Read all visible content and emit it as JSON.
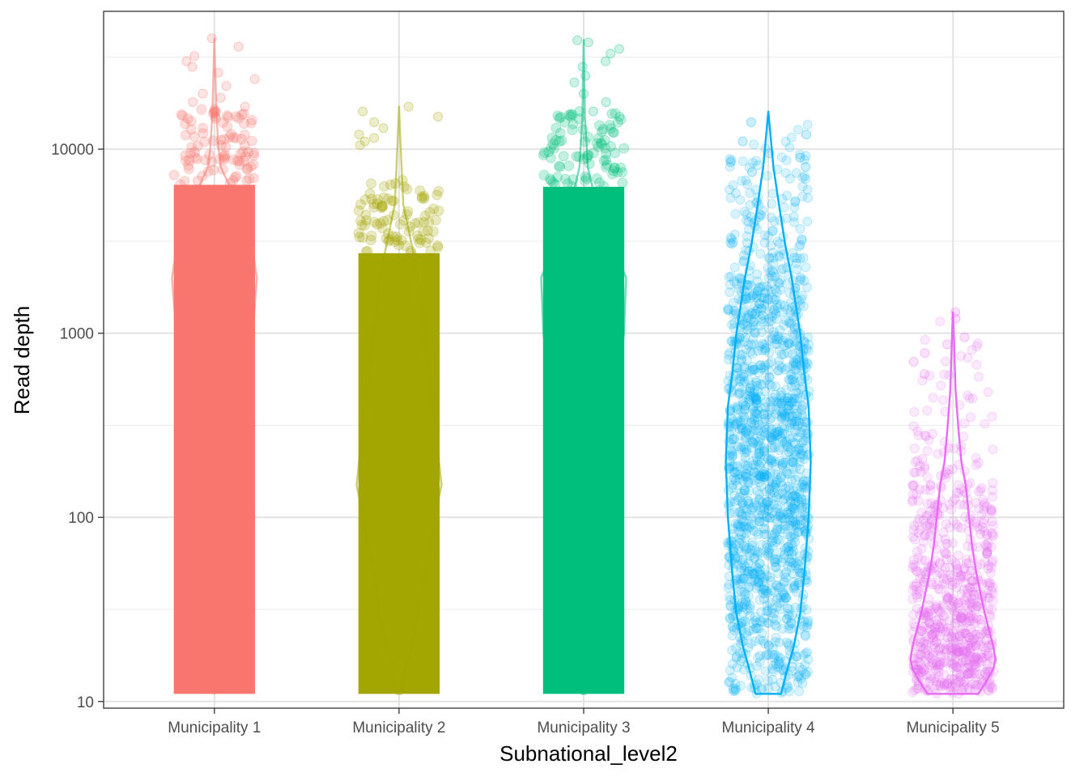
{
  "chart_data": {
    "type": "scatter",
    "subtype": "jittered-points-with-violin",
    "title": "",
    "xlabel": "Subnational_level2",
    "ylabel": "Read depth",
    "y_scale": "log10",
    "ylim": [
      9.2,
      56000
    ],
    "y_ticks": [
      10,
      100,
      1000,
      10000
    ],
    "y_tick_labels": [
      "10",
      "100",
      "1000",
      "10000"
    ],
    "grid": true,
    "legend": "none",
    "point_alpha": 0.15,
    "categories": [
      "Municipality 1",
      "Municipality 2",
      "Municipality 3",
      "Municipality 4",
      "Municipality 5"
    ],
    "groups": [
      {
        "name": "Municipality 1",
        "color": "#F8766D",
        "density": "very-high",
        "min": 11,
        "max": 40000,
        "outlier_points": [
          40000,
          36000,
          32000,
          30000,
          28000,
          26000,
          24000,
          22000,
          20000,
          19000,
          18000,
          17000,
          16000,
          15000
        ],
        "violin": [
          [
            11,
            0.0
          ],
          [
            14,
            0.0
          ],
          [
            20,
            0.0
          ],
          [
            40,
            0.1
          ],
          [
            100,
            0.2
          ],
          [
            300,
            0.5
          ],
          [
            1000,
            0.9
          ],
          [
            2000,
            1.0
          ],
          [
            4000,
            0.8
          ],
          [
            6000,
            0.4
          ],
          [
            8000,
            0.15
          ],
          [
            10000,
            0.1
          ],
          [
            15000,
            0.05
          ],
          [
            40000,
            0.0
          ]
        ]
      },
      {
        "name": "Municipality 2",
        "color": "#A3A500",
        "density": "very-high",
        "min": 11,
        "max": 17000,
        "outlier_points": [
          17000,
          16000,
          15000,
          14000,
          13000,
          12000,
          11500,
          11000,
          10500
        ],
        "violin": [
          [
            11,
            0.05
          ],
          [
            15,
            0.15
          ],
          [
            20,
            0.3
          ],
          [
            30,
            0.45
          ],
          [
            50,
            0.6
          ],
          [
            100,
            0.85
          ],
          [
            150,
            1.0
          ],
          [
            250,
            0.9
          ],
          [
            500,
            0.75
          ],
          [
            1000,
            0.6
          ],
          [
            2000,
            0.45
          ],
          [
            3000,
            0.3
          ],
          [
            5000,
            0.1
          ],
          [
            9000,
            0.05
          ],
          [
            17000,
            0.0
          ]
        ]
      },
      {
        "name": "Municipality 3",
        "color": "#00BF7D",
        "density": "very-high",
        "min": 11,
        "max": 39000,
        "outlier_points": [
          39000,
          38000,
          35000,
          33000,
          30000,
          28000,
          25000,
          23000,
          20000,
          18000,
          16000,
          15000
        ],
        "violin": [
          [
            11,
            0.05
          ],
          [
            30,
            0.15
          ],
          [
            100,
            0.4
          ],
          [
            300,
            0.7
          ],
          [
            1000,
            0.95
          ],
          [
            2000,
            1.0
          ],
          [
            3000,
            0.7
          ],
          [
            5000,
            0.3
          ],
          [
            8000,
            0.1
          ],
          [
            15000,
            0.03
          ],
          [
            39000,
            0.0
          ]
        ]
      },
      {
        "name": "Municipality 4",
        "color": "#00B0F6",
        "density": "medium",
        "min": 11,
        "max": 16000,
        "outlier_points": [
          14000,
          12000,
          11000,
          9500,
          9000,
          8500,
          8000,
          7500
        ],
        "violin": [
          [
            11,
            0.3
          ],
          [
            15,
            0.45
          ],
          [
            20,
            0.6
          ],
          [
            30,
            0.75
          ],
          [
            50,
            0.85
          ],
          [
            100,
            0.95
          ],
          [
            200,
            1.0
          ],
          [
            400,
            0.95
          ],
          [
            600,
            0.85
          ],
          [
            1000,
            0.75
          ],
          [
            2000,
            0.55
          ],
          [
            3000,
            0.4
          ],
          [
            5000,
            0.25
          ],
          [
            8000,
            0.12
          ],
          [
            16000,
            0.0
          ]
        ]
      },
      {
        "name": "Municipality 5",
        "color": "#E76BF3",
        "density": "low",
        "min": 11,
        "max": 1300,
        "outlier_points": [
          1300,
          1200,
          950,
          870,
          780,
          700,
          600
        ],
        "violin": [
          [
            11,
            0.6
          ],
          [
            13,
            0.8
          ],
          [
            15,
            0.95
          ],
          [
            17,
            1.0
          ],
          [
            20,
            0.95
          ],
          [
            30,
            0.75
          ],
          [
            50,
            0.55
          ],
          [
            70,
            0.45
          ],
          [
            100,
            0.38
          ],
          [
            150,
            0.3
          ],
          [
            200,
            0.2
          ],
          [
            300,
            0.13
          ],
          [
            500,
            0.06
          ],
          [
            1000,
            0.02
          ],
          [
            1300,
            0.0
          ]
        ]
      }
    ]
  }
}
